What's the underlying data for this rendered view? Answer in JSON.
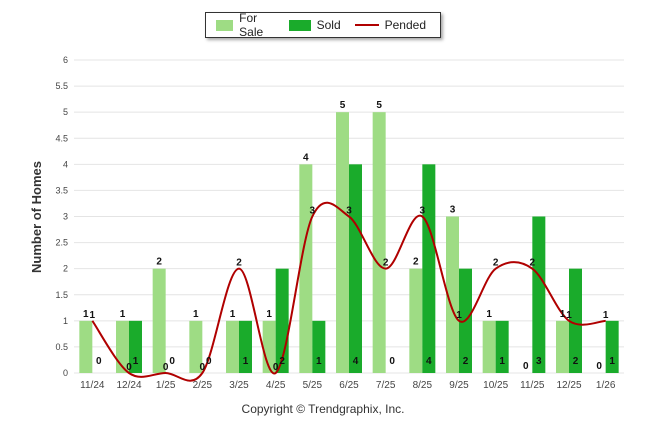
{
  "legend": {
    "for_sale": "For Sale",
    "sold": "Sold",
    "pended": "Pended"
  },
  "copyright": "Copyright © Trendgraphix, Inc.",
  "colors": {
    "for_sale": "#9edc84",
    "sold": "#1aab2b",
    "pended": "#b00000",
    "grid": "#e4e4e4"
  },
  "chart_data": {
    "type": "bar",
    "title": "",
    "xlabel": "",
    "ylabel": "Number of Homes",
    "ylim": [
      0,
      6
    ],
    "yticks": [
      "0",
      "0.5",
      "1",
      "1.5",
      "2",
      "2.5",
      "3",
      "3.5",
      "4",
      "4.5",
      "5",
      "5.5",
      "6"
    ],
    "categories": [
      "11/24",
      "12/24",
      "1/25",
      "2/25",
      "3/25",
      "4/25",
      "5/25",
      "6/25",
      "7/25",
      "8/25",
      "9/25",
      "10/25",
      "11/25",
      "12/25",
      "1/26"
    ],
    "series": [
      {
        "name": "For Sale",
        "kind": "bar",
        "values": [
          1,
          1,
          2,
          1,
          1,
          1,
          4,
          5,
          5,
          2,
          3,
          1,
          0,
          1,
          0
        ]
      },
      {
        "name": "Sold",
        "kind": "bar",
        "values": [
          0,
          1,
          0,
          0,
          1,
          2,
          1,
          4,
          0,
          4,
          2,
          1,
          3,
          2,
          1
        ]
      },
      {
        "name": "Pended",
        "kind": "line",
        "values": [
          1,
          0,
          0,
          0,
          2,
          0,
          3,
          3,
          2,
          3,
          1,
          2,
          2,
          1,
          1
        ]
      }
    ]
  }
}
